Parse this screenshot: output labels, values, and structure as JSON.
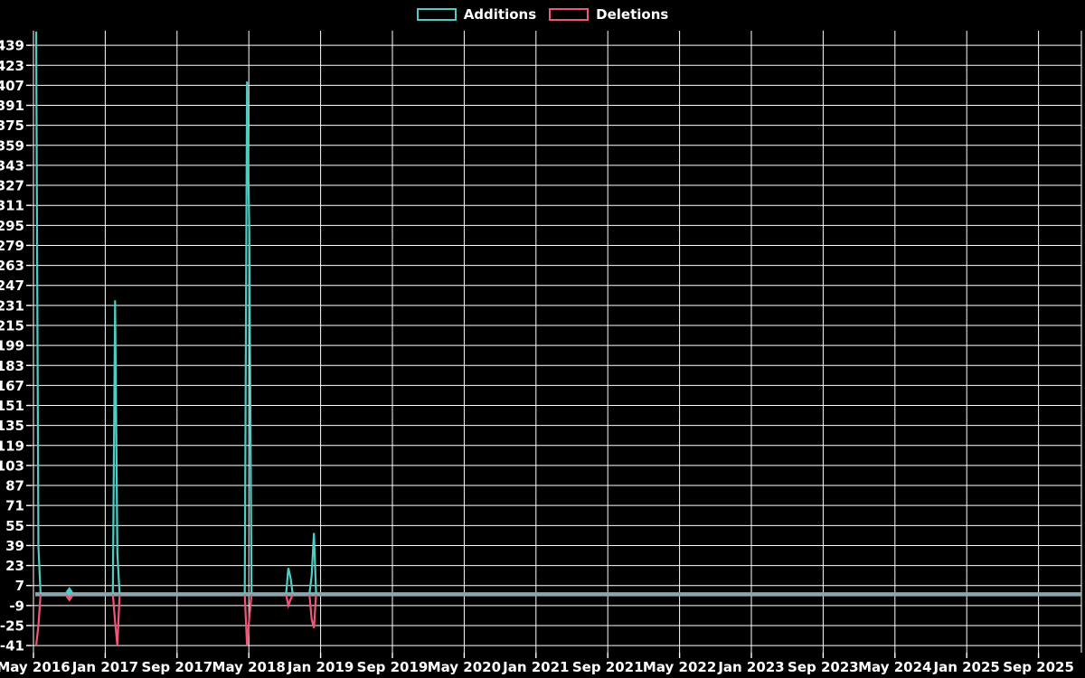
{
  "legend": {
    "additions_label": "Additions",
    "deletions_label": "Deletions"
  },
  "colors": {
    "background": "#000000",
    "grid": "#ffffff",
    "text": "#ffffff",
    "additions": "#4ECDC4",
    "deletions": "#EF5779",
    "zero_band": "#8CA6B0"
  },
  "chart_data": {
    "type": "line",
    "title": "",
    "description": "Weekly code additions/deletions frequency chart, dark theme. Flat at 0 except isolated spikes.",
    "legend_position": "top-center",
    "grid": true,
    "x_axis": {
      "tick_labels": [
        "May 2016",
        "Jan 2017",
        "Sep 2017",
        "May 2018",
        "Jan 2019",
        "Sep 2019",
        "May 2020",
        "Jan 2021",
        "Sep 2021",
        "May 2022",
        "Jan 2023",
        "Sep 2023",
        "May 2024",
        "Jan 2025",
        "Sep 2025"
      ],
      "tick_month_offsets": [
        0,
        8,
        16,
        24,
        32,
        40,
        48,
        56,
        64,
        72,
        80,
        88,
        96,
        104,
        112
      ]
    },
    "y_axis": {
      "tick_min": -41,
      "tick_max": 439,
      "tick_step": 16,
      "range_min": -47,
      "range_max": 450
    },
    "series": [
      {
        "name": "Additions",
        "key": "additions",
        "color": "#4ECDC4",
        "baseline": 0
      },
      {
        "name": "Deletions",
        "key": "deletions",
        "color": "#EF5779",
        "baseline": 0
      }
    ],
    "zero_band_color": "#8CA6B0",
    "week_halfwidth_months": 0.25,
    "events": [
      {
        "month": 0.3,
        "additions": 450,
        "deletions": -41,
        "clipped_top": true
      },
      {
        "month": 0.55,
        "additions": 38,
        "deletions": -25
      },
      {
        "month": 4.0,
        "additions": 2,
        "deletions": -2,
        "marker": "diamond"
      },
      {
        "month": 9.1,
        "additions": 235,
        "deletions": -22
      },
      {
        "month": 9.35,
        "additions": 33,
        "deletions": -41
      },
      {
        "month": 23.8,
        "additions": 410,
        "deletions": -41
      },
      {
        "month": 24.05,
        "additions": 290,
        "deletions": -19
      },
      {
        "month": 28.4,
        "additions": 21,
        "deletions": -9
      },
      {
        "month": 28.65,
        "additions": 13,
        "deletions": -4
      },
      {
        "month": 31.0,
        "additions": 15,
        "deletions": -20
      },
      {
        "month": 31.25,
        "additions": 49,
        "deletions": -27
      }
    ]
  }
}
